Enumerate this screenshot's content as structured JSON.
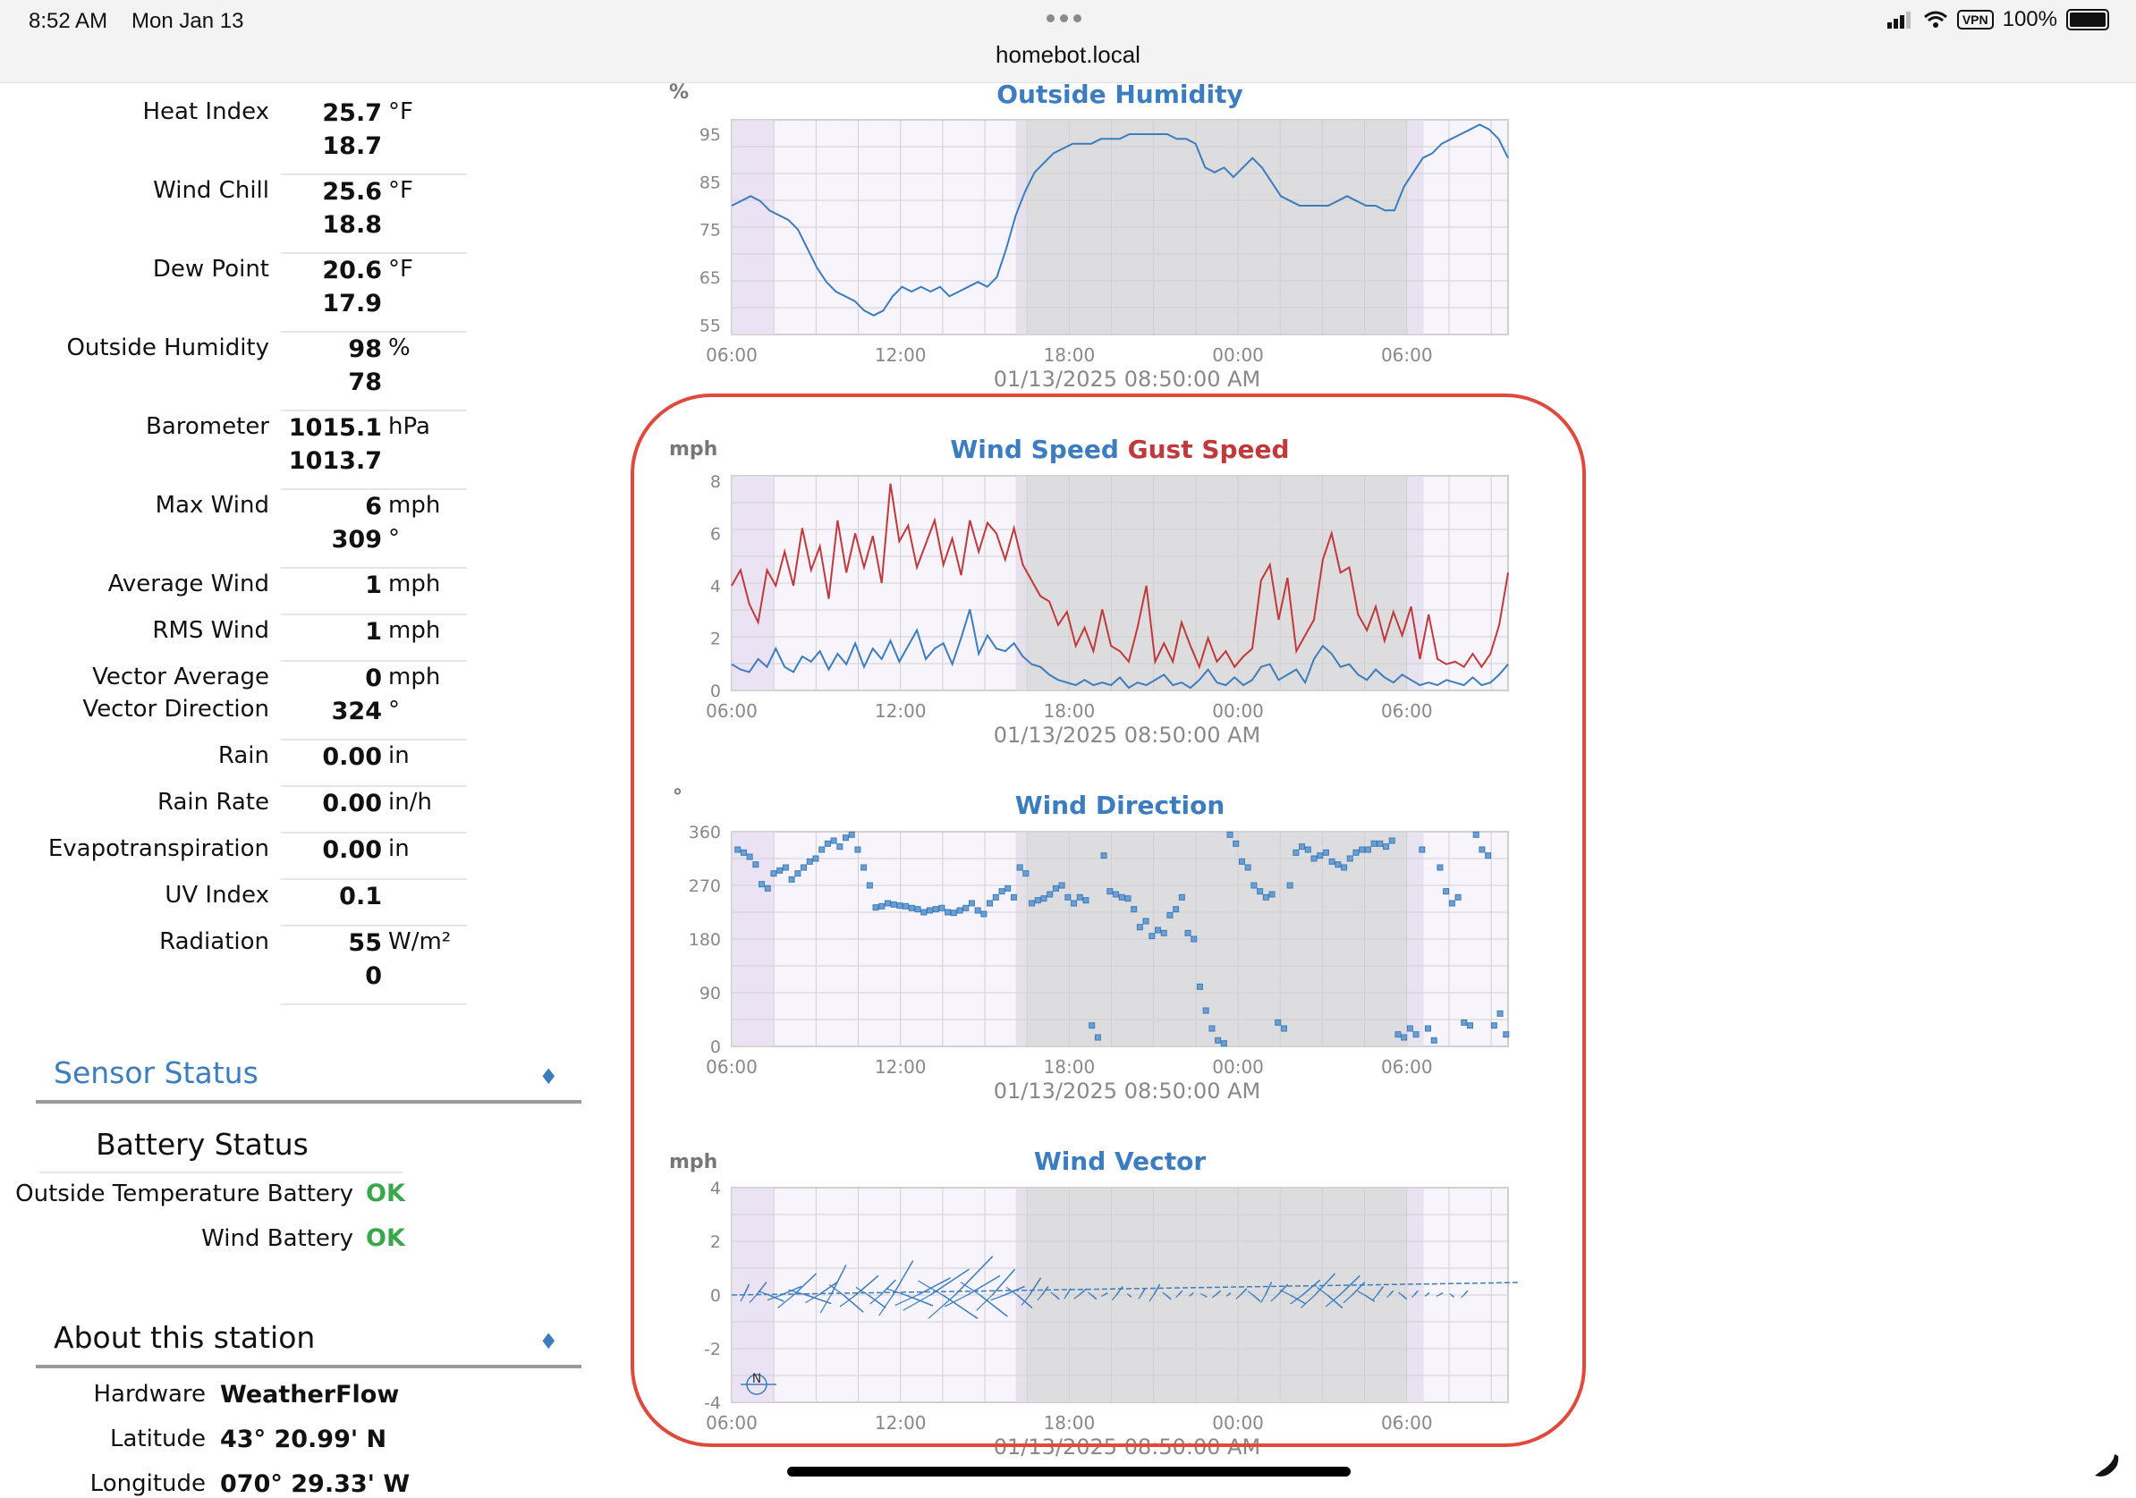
{
  "status_bar": {
    "time": "8:52 AM",
    "date": "Mon Jan 13",
    "url": "homebot.local",
    "vpn": "VPN",
    "battery": "100%"
  },
  "observations": [
    {
      "label": "Heat Index",
      "value": "25.7",
      "unit": "°F",
      "value2": "18.7"
    },
    {
      "label": "Wind Chill",
      "value": "25.6",
      "unit": "°F",
      "value2": "18.8"
    },
    {
      "label": "Dew Point",
      "value": "20.6",
      "unit": "°F",
      "value2": "17.9"
    },
    {
      "label": "Outside Humidity",
      "value": "98",
      "unit": "%",
      "value2": "78"
    },
    {
      "label": "Barometer",
      "value": "1015.1",
      "unit": "hPa",
      "value2": "1013.7"
    },
    {
      "label": "Max Wind",
      "value": "6",
      "unit": "mph",
      "value2": "309",
      "unit2": "°"
    },
    {
      "label": "Average Wind",
      "value": "1",
      "unit": "mph"
    },
    {
      "label": "RMS Wind",
      "value": "1",
      "unit": "mph"
    },
    {
      "label": "Vector Average",
      "label2": "Vector Direction",
      "value": "0",
      "unit": "mph",
      "value2": "324",
      "unit2": "°"
    },
    {
      "label": "Rain",
      "value": "0.00",
      "unit": "in"
    },
    {
      "label": "Rain Rate",
      "value": "0.00",
      "unit": "in/h"
    },
    {
      "label": "Evapotranspiration",
      "value": "0.00",
      "unit": "in"
    },
    {
      "label": "UV Index",
      "value": "0.1",
      "unit": ""
    },
    {
      "label": "Radiation",
      "value": "55",
      "unit": "W/m²",
      "value2": "0"
    }
  ],
  "sensor_status": {
    "title": "Sensor Status",
    "toggle": "♦",
    "battery_title": "Battery Status",
    "items": [
      {
        "label": "Outside Temperature Battery",
        "status": "OK"
      },
      {
        "label": "Wind Battery",
        "status": "OK"
      }
    ]
  },
  "about": {
    "title": "About this station",
    "toggle": "♦",
    "items": [
      {
        "label": "Hardware",
        "value": "WeatherFlow"
      },
      {
        "label": "Latitude",
        "value": "43° 20.99' N"
      },
      {
        "label": "Longitude",
        "value": "070° 29.33' W"
      }
    ]
  },
  "chart_data": [
    {
      "type": "line",
      "title": "Outside Humidity",
      "unit_label": "%",
      "timestamp": "01/13/2025 08:50:00 AM",
      "x_ticks": [
        "06:00",
        "12:00",
        "18:00",
        "00:00",
        "06:00"
      ],
      "y_ticks": [
        "55",
        "65",
        "75",
        "85",
        "95"
      ],
      "ylim": [
        53,
        98
      ],
      "series": [
        {
          "values": [
            80,
            81,
            82,
            81,
            79,
            78,
            77,
            75,
            71,
            67,
            64,
            62,
            61,
            60,
            58,
            57,
            58,
            61,
            63,
            62,
            63,
            62,
            63,
            61,
            62,
            63,
            64,
            63,
            65,
            71,
            78,
            83,
            87,
            89,
            91,
            92,
            93,
            93,
            93,
            94,
            94,
            94,
            95,
            95,
            95,
            95,
            95,
            94,
            94,
            93,
            88,
            87,
            88,
            86,
            88,
            90,
            88,
            85,
            82,
            81,
            80,
            80,
            80,
            80,
            81,
            82,
            81,
            80,
            80,
            79,
            79,
            84,
            87,
            90,
            91,
            93,
            94,
            95,
            96,
            97,
            96,
            94,
            90
          ]
        }
      ]
    },
    {
      "type": "line",
      "title": "Wind Speed",
      "title2": "Gust Speed",
      "unit_label": "mph",
      "timestamp": "01/13/2025 08:50:00 AM",
      "x_ticks": [
        "06:00",
        "12:00",
        "18:00",
        "00:00",
        "06:00"
      ],
      "y_ticks": [
        "0",
        "2",
        "4",
        "6",
        "8"
      ],
      "ylim": [
        0,
        8.2
      ],
      "series": [
        {
          "name": "Wind Speed",
          "values": [
            1.0,
            0.8,
            0.7,
            1.2,
            0.9,
            1.6,
            0.9,
            0.7,
            1.3,
            1.1,
            1.5,
            0.8,
            1.4,
            1.0,
            1.8,
            0.9,
            1.6,
            1.2,
            1.9,
            1.1,
            1.7,
            2.3,
            1.2,
            1.6,
            1.8,
            1.0,
            2.0,
            3.1,
            1.4,
            2.1,
            1.6,
            1.5,
            1.8,
            1.3,
            1.0,
            0.9,
            0.6,
            0.4,
            0.3,
            0.2,
            0.4,
            0.2,
            0.3,
            0.2,
            0.5,
            0.1,
            0.3,
            0.2,
            0.4,
            0.6,
            0.2,
            0.3,
            0.1,
            0.4,
            0.8,
            0.3,
            0.2,
            0.5,
            0.2,
            0.4,
            0.9,
            1.0,
            0.4,
            0.6,
            0.8,
            0.3,
            1.2,
            1.7,
            1.4,
            0.9,
            1.0,
            0.6,
            0.4,
            0.8,
            0.5,
            0.3,
            0.6,
            0.4,
            0.2,
            0.3,
            0.2,
            0.4,
            0.3,
            0.2,
            0.5,
            0.2,
            0.3,
            0.6,
            1.0
          ]
        },
        {
          "name": "Gust Speed",
          "values": [
            4.0,
            4.6,
            3.3,
            2.6,
            4.6,
            4.0,
            5.3,
            4.0,
            6.2,
            4.6,
            5.5,
            3.5,
            6.5,
            4.5,
            6.0,
            4.7,
            5.9,
            4.1,
            7.9,
            5.7,
            6.3,
            4.7,
            5.6,
            6.5,
            4.8,
            5.8,
            4.4,
            6.5,
            5.3,
            6.4,
            6.0,
            5.0,
            6.2,
            4.8,
            4.2,
            3.6,
            3.4,
            2.5,
            3.0,
            1.7,
            2.4,
            1.5,
            3.1,
            1.7,
            1.5,
            1.1,
            2.4,
            4.0,
            1.1,
            1.8,
            1.1,
            2.6,
            1.7,
            0.9,
            2.0,
            1.1,
            1.5,
            0.9,
            1.3,
            1.6,
            4.2,
            4.8,
            2.7,
            4.3,
            1.5,
            2.1,
            2.7,
            5.0,
            6.0,
            4.5,
            4.7,
            2.9,
            2.3,
            3.2,
            1.9,
            3.0,
            2.1,
            3.2,
            1.2,
            2.9,
            1.2,
            1.0,
            1.1,
            0.9,
            1.4,
            0.9,
            1.4,
            2.5,
            4.5
          ]
        }
      ]
    },
    {
      "type": "scatter",
      "title": "Wind Direction",
      "unit_label": "°",
      "timestamp": "01/13/2025 08:50:00 AM",
      "x_ticks": [
        "06:00",
        "12:00",
        "18:00",
        "00:00",
        "06:00"
      ],
      "y_ticks": [
        "0",
        "90",
        "180",
        "270",
        "360"
      ],
      "ylim": [
        0,
        360
      ],
      "x_range_hours": [
        0,
        27
      ],
      "points": [
        [
          0.3,
          330
        ],
        [
          0.6,
          325
        ],
        [
          0.9,
          318
        ],
        [
          1.2,
          305
        ],
        [
          1.5,
          272
        ],
        [
          1.8,
          265
        ],
        [
          2.1,
          290
        ],
        [
          2.4,
          295
        ],
        [
          2.7,
          300
        ],
        [
          3.0,
          280
        ],
        [
          3.3,
          290
        ],
        [
          3.6,
          300
        ],
        [
          3.9,
          310
        ],
        [
          4.2,
          315
        ],
        [
          4.5,
          330
        ],
        [
          4.8,
          340
        ],
        [
          5.1,
          345
        ],
        [
          5.4,
          335
        ],
        [
          5.7,
          350
        ],
        [
          6.0,
          355
        ],
        [
          6.3,
          330
        ],
        [
          6.6,
          300
        ],
        [
          6.9,
          270
        ],
        [
          7.2,
          233
        ],
        [
          7.5,
          235
        ],
        [
          7.8,
          240
        ],
        [
          8.1,
          238
        ],
        [
          8.4,
          236
        ],
        [
          8.7,
          235
        ],
        [
          9.0,
          232
        ],
        [
          9.3,
          230
        ],
        [
          9.6,
          225
        ],
        [
          9.9,
          228
        ],
        [
          10.2,
          230
        ],
        [
          10.5,
          232
        ],
        [
          10.8,
          225
        ],
        [
          11.1,
          224
        ],
        [
          11.4,
          228
        ],
        [
          11.7,
          232
        ],
        [
          12.0,
          240
        ],
        [
          12.3,
          228
        ],
        [
          12.6,
          222
        ],
        [
          12.9,
          240
        ],
        [
          13.2,
          250
        ],
        [
          13.5,
          260
        ],
        [
          13.8,
          265
        ],
        [
          14.1,
          250
        ],
        [
          14.4,
          300
        ],
        [
          14.7,
          290
        ],
        [
          15.0,
          240
        ],
        [
          15.3,
          245
        ],
        [
          15.6,
          248
        ],
        [
          15.9,
          255
        ],
        [
          16.2,
          265
        ],
        [
          16.5,
          270
        ],
        [
          16.8,
          250
        ],
        [
          17.1,
          240
        ],
        [
          17.4,
          250
        ],
        [
          17.7,
          245
        ],
        [
          18.0,
          35
        ],
        [
          18.3,
          15
        ],
        [
          18.6,
          320
        ],
        [
          18.9,
          260
        ],
        [
          19.2,
          255
        ],
        [
          19.5,
          250
        ],
        [
          19.8,
          248
        ],
        [
          20.1,
          230
        ],
        [
          20.4,
          200
        ],
        [
          20.7,
          210
        ],
        [
          21.0,
          185
        ],
        [
          21.3,
          195
        ],
        [
          21.6,
          190
        ],
        [
          21.9,
          220
        ],
        [
          22.2,
          230
        ],
        [
          22.5,
          250
        ],
        [
          22.8,
          190
        ],
        [
          23.1,
          180
        ],
        [
          23.4,
          100
        ],
        [
          23.7,
          60
        ],
        [
          24.0,
          30
        ],
        [
          24.3,
          10
        ],
        [
          24.6,
          5
        ],
        [
          24.9,
          355
        ],
        [
          25.2,
          340
        ],
        [
          25.5,
          310
        ],
        [
          25.8,
          300
        ],
        [
          26.1,
          270
        ],
        [
          26.4,
          260
        ],
        [
          26.7,
          250
        ],
        [
          27.0,
          255
        ],
        [
          27.3,
          40
        ],
        [
          27.6,
          30
        ],
        [
          27.9,
          270
        ],
        [
          28.2,
          325
        ],
        [
          28.5,
          335
        ],
        [
          28.8,
          330
        ],
        [
          29.1,
          315
        ],
        [
          29.4,
          320
        ],
        [
          29.7,
          325
        ],
        [
          30.0,
          310
        ],
        [
          30.3,
          305
        ],
        [
          30.6,
          300
        ],
        [
          30.9,
          315
        ],
        [
          31.2,
          325
        ],
        [
          31.5,
          330
        ],
        [
          31.8,
          330
        ],
        [
          32.1,
          340
        ],
        [
          32.4,
          340
        ],
        [
          32.7,
          335
        ],
        [
          33.0,
          345
        ],
        [
          33.3,
          20
        ],
        [
          33.6,
          15
        ],
        [
          33.9,
          30
        ],
        [
          34.2,
          20
        ],
        [
          34.5,
          330
        ],
        [
          34.8,
          30
        ],
        [
          35.1,
          10
        ],
        [
          35.4,
          300
        ],
        [
          35.7,
          260
        ],
        [
          36.0,
          240
        ],
        [
          36.3,
          250
        ],
        [
          36.6,
          40
        ],
        [
          36.9,
          35
        ],
        [
          37.2,
          355
        ],
        [
          37.5,
          330
        ],
        [
          37.8,
          320
        ],
        [
          38.1,
          35
        ],
        [
          38.4,
          55
        ],
        [
          38.7,
          20
        ]
      ]
    },
    {
      "type": "line",
      "title": "Wind Vector",
      "unit_label": "mph",
      "timestamp": "01/13/2025 08:50:00 AM",
      "x_ticks": [
        "06:00",
        "12:00",
        "18:00",
        "00:00",
        "06:00"
      ],
      "y_ticks": [
        "-4",
        "-2",
        "0",
        "2",
        "4"
      ],
      "ylim": [
        -4,
        4
      ],
      "compass": "N",
      "vectors": [
        [
          0.3,
          0.4,
          0.5
        ],
        [
          0.6,
          0.8,
          0.6
        ],
        [
          0.9,
          1.2,
          -0.3
        ],
        [
          1.2,
          1.6,
          0.4
        ],
        [
          1.5,
          1.8,
          1.0
        ],
        [
          1.8,
          2.0,
          -0.4
        ],
        [
          2.1,
          1.5,
          0.6
        ],
        [
          2.4,
          1.2,
          1.4
        ],
        [
          2.7,
          1.6,
          -0.8
        ],
        [
          3.0,
          1.8,
          0.9
        ],
        [
          3.3,
          1.4,
          -0.6
        ],
        [
          3.6,
          1.2,
          0.7
        ],
        [
          3.9,
          1.6,
          1.6
        ],
        [
          4.2,
          2.2,
          -0.5
        ],
        [
          4.5,
          2.6,
          0.8
        ],
        [
          4.8,
          3.1,
          1.2
        ],
        [
          5.1,
          2.8,
          -1.1
        ],
        [
          5.4,
          3.0,
          1.8
        ],
        [
          5.7,
          2.6,
          0.9
        ],
        [
          6.0,
          2.2,
          -1.0
        ],
        [
          6.3,
          1.8,
          1.2
        ],
        [
          6.6,
          1.6,
          0.4
        ],
        [
          6.9,
          1.2,
          -0.6
        ],
        [
          7.2,
          0.9,
          0.8
        ],
        [
          7.5,
          0.5,
          0.4
        ],
        [
          7.8,
          0.4,
          -0.2
        ],
        [
          8.1,
          0.3,
          0.3
        ],
        [
          8.4,
          0.6,
          0.3
        ],
        [
          8.7,
          0.4,
          -0.2
        ],
        [
          9.0,
          0.3,
          0.1
        ],
        [
          9.3,
          0.5,
          0.4
        ],
        [
          9.6,
          0.2,
          -0.1
        ],
        [
          9.9,
          0.3,
          0.3
        ],
        [
          10.2,
          0.5,
          0.5
        ],
        [
          10.5,
          0.4,
          -0.2
        ],
        [
          10.8,
          0.3,
          0.2
        ],
        [
          11.1,
          0.2,
          0.1
        ],
        [
          11.4,
          0.3,
          -0.1
        ],
        [
          11.7,
          0.4,
          0.2
        ],
        [
          12.0,
          0.2,
          0.1
        ],
        [
          12.3,
          0.5,
          0.3
        ],
        [
          12.6,
          0.6,
          -0.3
        ],
        [
          12.9,
          0.5,
          0.6
        ],
        [
          13.2,
          0.8,
          0.5
        ],
        [
          13.5,
          1.2,
          -0.4
        ],
        [
          13.8,
          1.4,
          0.7
        ],
        [
          14.1,
          1.6,
          1.0
        ],
        [
          14.4,
          1.2,
          -0.6
        ],
        [
          14.7,
          1.6,
          0.9
        ],
        [
          15.0,
          1.0,
          0.6
        ],
        [
          15.3,
          0.8,
          -0.3
        ],
        [
          15.6,
          0.5,
          0.4
        ],
        [
          15.9,
          0.3,
          0.2
        ],
        [
          16.2,
          0.4,
          -0.2
        ],
        [
          16.5,
          0.3,
          0.2
        ],
        [
          16.8,
          0.2,
          0.1
        ],
        [
          17.1,
          0.3,
          0.1
        ],
        [
          17.4,
          0.2,
          -0.1
        ],
        [
          17.7,
          0.3,
          0.2
        ]
      ]
    }
  ]
}
